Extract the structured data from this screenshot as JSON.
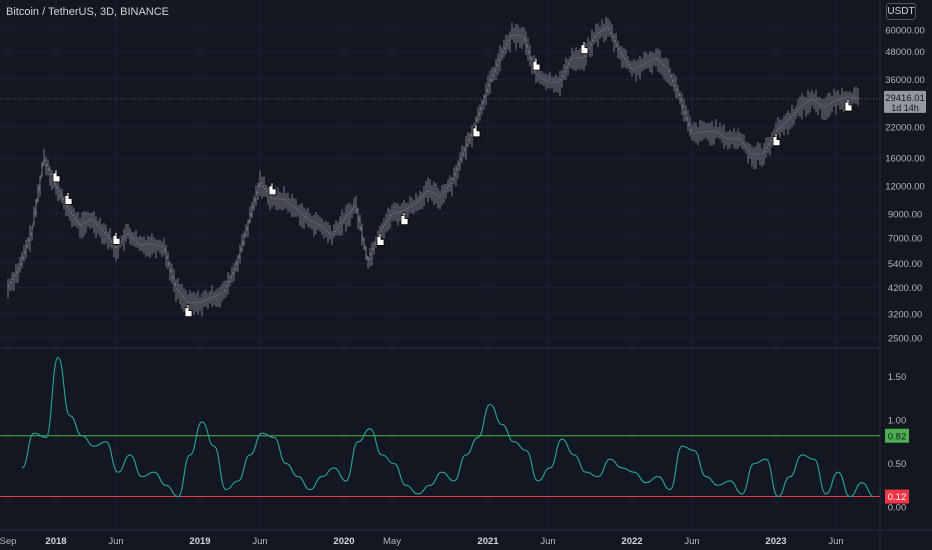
{
  "header": {
    "symbol_title": "Bitcoin / TetherUS, 3D, BINANCE",
    "currency": "USDT"
  },
  "price_panel": {
    "scale": "log",
    "axis_labels": [
      "60000.00",
      "48000.00",
      "36000.00",
      "22000.00",
      "16000.00",
      "12000.00",
      "9000.00",
      "7000.00",
      "5400.00",
      "4200.00",
      "3200.00",
      "2500.00"
    ],
    "last_price": "29416.01",
    "countdown": "1d 14h",
    "colors": {
      "candle": "#787b86",
      "price_line": "#787b86",
      "price_tag": "#9598a1",
      "marker_fill": "#ffffff",
      "marker_stroke": "#000000"
    }
  },
  "indicator_panel": {
    "axis_labels": [
      "1.50",
      "1.00",
      "0.50",
      "0.00"
    ],
    "upper_level": "0.82",
    "lower_level": "0.12",
    "colors": {
      "line": "#26a69a",
      "upper": "#4caf50",
      "lower": "#f23645"
    }
  },
  "time_axis": {
    "labels": [
      "Sep",
      "2018",
      "Jun",
      "2019",
      "Jun",
      "2020",
      "May",
      "2021",
      "Jun",
      "2022",
      "Jun",
      "2023",
      "Jun"
    ],
    "year_labels": [
      "2018",
      "2019",
      "2020",
      "2021",
      "2022",
      "2023"
    ]
  },
  "chart_data": [
    {
      "type": "line",
      "series": [
        {
          "x": [
            "2017-09",
            "2017-10",
            "2017-11",
            "2017-12",
            "2018-01",
            "2018-02",
            "2018-03",
            "2018-04",
            "2018-05",
            "2018-06",
            "2018-07",
            "2018-08",
            "2018-09",
            "2018-10",
            "2018-11",
            "2018-12",
            "2019-01",
            "2019-02",
            "2019-03",
            "2019-04",
            "2019-05",
            "2019-06",
            "2019-07",
            "2019-08",
            "2019-09",
            "2019-10",
            "2019-11",
            "2019-12",
            "2020-01",
            "2020-02",
            "2020-03",
            "2020-04",
            "2020-05",
            "2020-06",
            "2020-07",
            "2020-08",
            "2020-09",
            "2020-10",
            "2020-11",
            "2020-12",
            "2021-01",
            "2021-02",
            "2021-03",
            "2021-04",
            "2021-05",
            "2021-06",
            "2021-07",
            "2021-08",
            "2021-09",
            "2021-10",
            "2021-11",
            "2021-12",
            "2022-01",
            "2022-02",
            "2022-03",
            "2022-04",
            "2022-05",
            "2022-06",
            "2022-07",
            "2022-08",
            "2022-09",
            "2022-10",
            "2022-11",
            "2022-12",
            "2023-01",
            "2023-02",
            "2023-03",
            "2023-04",
            "2023-05",
            "2023-06",
            "2023-07",
            "2023-08"
          ],
          "values": [
            4200,
            5200,
            7500,
            16000,
            12000,
            9500,
            8000,
            8500,
            7500,
            6300,
            7400,
            6500,
            6600,
            6400,
            4200,
            3600,
            3600,
            3800,
            4000,
            5200,
            8000,
            12500,
            10500,
            10500,
            9500,
            8500,
            8000,
            7200,
            8500,
            9800,
            5500,
            7500,
            9000,
            9300,
            10000,
            11500,
            10700,
            12500,
            17000,
            23000,
            33000,
            45000,
            57000,
            56000,
            38000,
            35000,
            35000,
            45000,
            45000,
            57000,
            62000,
            48000,
            40000,
            42000,
            45000,
            40000,
            30000,
            20500,
            21000,
            21000,
            19500,
            19500,
            16500,
            16800,
            21000,
            23500,
            27000,
            29500,
            27000,
            29000,
            30000,
            29416
          ]
        }
      ],
      "ylim": [
        2500,
        65000
      ]
    },
    {
      "type": "line",
      "series": [
        {
          "x": [
            "2017-09",
            "2017-10",
            "2017-11",
            "2017-12",
            "2018-01",
            "2018-02",
            "2018-03",
            "2018-04",
            "2018-05",
            "2018-06",
            "2018-07",
            "2018-08",
            "2018-09",
            "2018-10",
            "2018-11",
            "2018-12",
            "2019-01",
            "2019-02",
            "2019-03",
            "2019-04",
            "2019-05",
            "2019-06",
            "2019-07",
            "2019-08",
            "2019-09",
            "2019-10",
            "2019-11",
            "2019-12",
            "2020-01",
            "2020-02",
            "2020-03",
            "2020-04",
            "2020-05",
            "2020-06",
            "2020-07",
            "2020-08",
            "2020-09",
            "2020-10",
            "2020-11",
            "2020-12",
            "2021-01",
            "2021-02",
            "2021-03",
            "2021-04",
            "2021-05",
            "2021-06",
            "2021-07",
            "2021-08",
            "2021-09",
            "2021-10",
            "2021-11",
            "2021-12",
            "2022-01",
            "2022-02",
            "2022-03",
            "2022-04",
            "2022-05",
            "2022-06",
            "2022-07",
            "2022-08",
            "2022-09",
            "2022-10",
            "2022-11",
            "2022-12",
            "2023-01",
            "2023-02",
            "2023-03",
            "2023-04",
            "2023-05",
            "2023-06",
            "2023-07",
            "2023-08"
          ],
          "values": [
            0.45,
            0.85,
            0.8,
            1.72,
            1.05,
            0.82,
            0.7,
            0.75,
            0.4,
            0.6,
            0.35,
            0.4,
            0.25,
            0.12,
            0.6,
            0.98,
            0.7,
            0.2,
            0.3,
            0.6,
            0.85,
            0.8,
            0.5,
            0.35,
            0.2,
            0.35,
            0.45,
            0.3,
            0.75,
            0.9,
            0.6,
            0.5,
            0.25,
            0.15,
            0.25,
            0.4,
            0.3,
            0.6,
            0.8,
            1.18,
            0.95,
            0.75,
            0.65,
            0.3,
            0.45,
            0.78,
            0.6,
            0.4,
            0.35,
            0.55,
            0.45,
            0.4,
            0.28,
            0.35,
            0.2,
            0.7,
            0.65,
            0.35,
            0.25,
            0.3,
            0.15,
            0.5,
            0.55,
            0.12,
            0.35,
            0.6,
            0.55,
            0.15,
            0.4,
            0.12,
            0.28,
            0.12
          ]
        }
      ],
      "ylim": [
        -0.15,
        1.75
      ]
    }
  ]
}
